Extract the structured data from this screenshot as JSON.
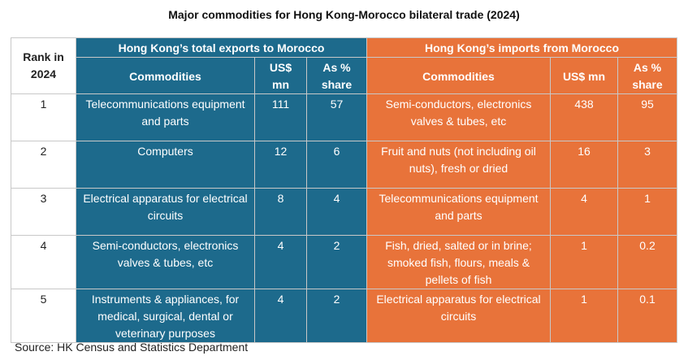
{
  "title": "Major commodities for Hong Kong-Morocco bilateral trade (2024)",
  "table": {
    "rank_header": "Rank in 2024",
    "groups": [
      "Hong Kong’s total exports to Morocco",
      "Hong Kong’s imports from Morocco"
    ],
    "columns": [
      "Commodities",
      "US$ mn",
      "As % share",
      "Commodities",
      "US$ mn",
      "As % share"
    ],
    "rows": [
      [
        1,
        "Telecommunications equipment and parts",
        111,
        57,
        "Semi-conductors, electronics valves & tubes, etc",
        438,
        95
      ],
      [
        2,
        "Computers",
        12,
        6,
        "Fruit and nuts (not including oil nuts), fresh or dried",
        16,
        3
      ],
      [
        3,
        "Electrical apparatus for electrical circuits",
        8,
        4,
        "Telecommunications equipment and parts",
        4,
        1
      ],
      [
        4,
        "Semi-conductors, electronics valves & tubes, etc",
        4,
        2,
        "Fish, dried, salted or in brine; smoked fish, flours, meals & pellets of fish",
        1,
        0.2
      ],
      [
        5,
        "Instruments & appliances, for medical, surgical, dental or veterinary purposes",
        4,
        2,
        "Electrical apparatus for electrical circuits",
        1,
        0.1
      ]
    ]
  },
  "source": "Source: HK Census and Statistics Department"
}
